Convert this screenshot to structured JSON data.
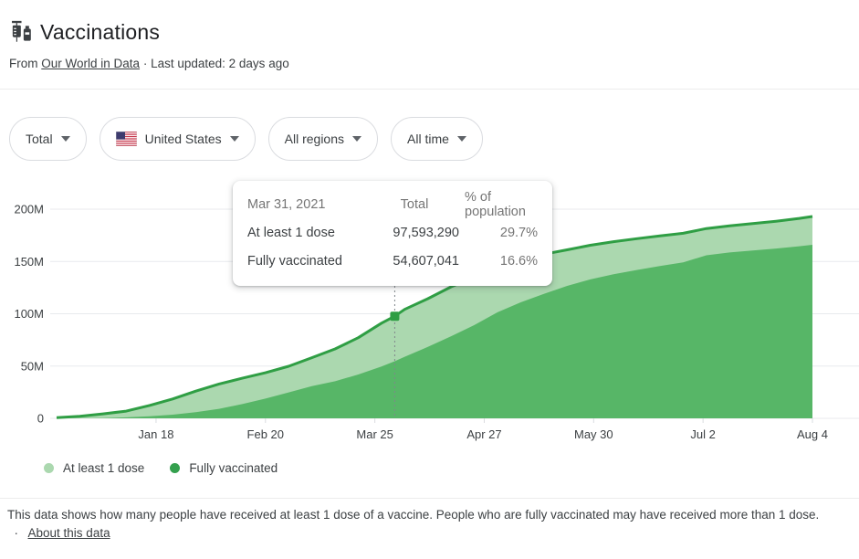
{
  "header": {
    "title": "Vaccinations",
    "source_prefix": "From",
    "source_link": "Our World in Data",
    "separator": "·",
    "last_updated": "Last updated: 2 days ago"
  },
  "filters": [
    {
      "label": "Total"
    },
    {
      "label": "United States"
    },
    {
      "label": "All regions"
    },
    {
      "label": "All time"
    }
  ],
  "tooltip": {
    "date": "Mar 31, 2021",
    "col_total": "Total",
    "col_pct": "% of population",
    "rows": [
      {
        "label": "At least 1 dose",
        "total": "97,593,290",
        "pct": "29.7%"
      },
      {
        "label": "Fully vaccinated",
        "total": "54,607,041",
        "pct": "16.6%"
      }
    ]
  },
  "chart_data": {
    "type": "area",
    "title": "Vaccinations",
    "x_start_date": "Dec 19, 2020",
    "x_end_date": "Aug 4, 2021",
    "x_range_days": [
      0,
      228
    ],
    "ylim": [
      0,
      200
    ],
    "y_unit": "millions of people",
    "grid": "horizontal",
    "legend_position": "bottom-left",
    "x_tick_labels": [
      "Jan 18",
      "Feb 20",
      "Mar 25",
      "Apr 27",
      "May 30",
      "Jul 2",
      "Aug 4"
    ],
    "x_tick_days": [
      30,
      63,
      96,
      129,
      162,
      195,
      228
    ],
    "y_tick_labels": [
      "0",
      "50M",
      "100M",
      "150M",
      "200M"
    ],
    "y_tick_values": [
      0,
      50,
      100,
      150,
      200
    ],
    "days": [
      0,
      7,
      14,
      21,
      28,
      35,
      42,
      49,
      56,
      63,
      70,
      77,
      84,
      91,
      98,
      102,
      105,
      112,
      119,
      126,
      133,
      140,
      147,
      154,
      161,
      168,
      175,
      182,
      189,
      196,
      203,
      210,
      217,
      224,
      228
    ],
    "series": [
      {
        "name": "At least 1 dose",
        "fill": "#abd8af",
        "line": "#2f9e44",
        "values_millions": [
          0.6,
          2.0,
          4.3,
          6.9,
          12.3,
          18.5,
          26.0,
          32.8,
          38.3,
          43.6,
          49.8,
          58.0,
          66.4,
          77.1,
          91.0,
          97.6,
          104.2,
          114.4,
          125.8,
          135.1,
          144.9,
          152.1,
          156.9,
          161.1,
          165.5,
          168.9,
          171.8,
          174.5,
          176.9,
          181.5,
          184.1,
          186.2,
          188.5,
          191.2,
          193.0
        ]
      },
      {
        "name": "Fully vaccinated",
        "fill": "#57b667",
        "line": null,
        "values_millions": [
          0.0,
          0.1,
          0.3,
          1.0,
          2.0,
          3.5,
          5.9,
          9.1,
          13.6,
          18.9,
          24.8,
          30.7,
          35.5,
          41.9,
          49.5,
          54.6,
          58.9,
          68.3,
          78.5,
          89.2,
          101.4,
          110.9,
          119.0,
          126.6,
          132.8,
          137.7,
          141.8,
          145.7,
          149.2,
          155.9,
          158.6,
          160.4,
          162.4,
          164.5,
          165.9
        ]
      }
    ],
    "highlight": {
      "date": "Mar 31, 2021",
      "day": 102,
      "at_least_1_dose": 97593290,
      "fully_vaccinated": 54607041,
      "pct_1_dose": "29.7%",
      "pct_fully": "16.6%"
    }
  },
  "legend": [
    {
      "label": "At least 1 dose",
      "color": "#abd8af"
    },
    {
      "label": "Fully vaccinated",
      "color": "#34a04e"
    }
  ],
  "footer": {
    "text": "This data shows how many people have received at least 1 dose of a vaccine. People who are fully vaccinated may have received more than 1 dose.",
    "separator": "·",
    "link": "About this data"
  },
  "colors": {
    "accent_line": "#2f9e44",
    "area_light": "#abd8af",
    "area_medium": "#57b667",
    "gridline": "#e8eaed",
    "axis_text": "#3c4043",
    "marker_guide": "#80868b"
  }
}
